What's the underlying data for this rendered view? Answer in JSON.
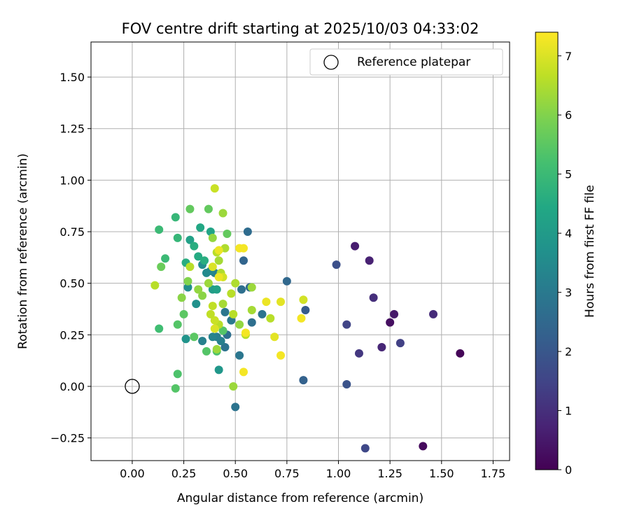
{
  "chart_data": {
    "type": "scatter",
    "title": "FOV centre drift starting at 2025/10/03 04:33:02",
    "xlabel": "Angular distance from reference (arcmin)",
    "ylabel": "Rotation from reference (arcmin)",
    "xlim": [
      -0.2,
      1.83
    ],
    "ylim": [
      -0.36,
      1.67
    ],
    "xticks": [
      0.0,
      0.25,
      0.5,
      0.75,
      1.0,
      1.25,
      1.5,
      1.75
    ],
    "xtick_labels": [
      "0.00",
      "0.25",
      "0.50",
      "0.75",
      "1.00",
      "1.25",
      "1.50",
      "1.75"
    ],
    "yticks": [
      -0.25,
      0.0,
      0.25,
      0.5,
      0.75,
      1.0,
      1.25,
      1.5
    ],
    "ytick_labels": [
      "−0.25",
      "0.00",
      "0.25",
      "0.50",
      "0.75",
      "1.00",
      "1.25",
      "1.50"
    ],
    "grid": true,
    "legend": {
      "position": "top-right",
      "entries": [
        "Reference platepar"
      ]
    },
    "reference_point": {
      "x": 0.0,
      "y": 0.0,
      "label": "Reference platepar"
    },
    "colorbar": {
      "label": "Hours from first FF file",
      "colormap": "viridis",
      "range": [
        0,
        7.4
      ],
      "ticks": [
        0,
        1,
        2,
        3,
        4,
        5,
        6,
        7
      ],
      "tick_labels": [
        "0",
        "1",
        "2",
        "3",
        "4",
        "5",
        "6",
        "7"
      ]
    },
    "points": [
      [
        1.59,
        0.16,
        0.1
      ],
      [
        1.41,
        -0.29,
        0.2
      ],
      [
        1.25,
        0.31,
        0.3
      ],
      [
        1.27,
        0.35,
        0.5
      ],
      [
        1.08,
        0.68,
        0.6
      ],
      [
        1.15,
        0.61,
        0.7
      ],
      [
        1.21,
        0.19,
        0.8
      ],
      [
        1.46,
        0.35,
        0.9
      ],
      [
        1.17,
        0.43,
        1.0
      ],
      [
        1.1,
        0.16,
        1.2
      ],
      [
        1.3,
        0.21,
        1.4
      ],
      [
        1.04,
        0.3,
        1.5
      ],
      [
        1.13,
        -0.3,
        1.6
      ],
      [
        0.99,
        0.59,
        1.8
      ],
      [
        1.04,
        0.01,
        1.9
      ],
      [
        0.84,
        0.37,
        2.1
      ],
      [
        0.83,
        0.03,
        2.3
      ],
      [
        0.75,
        0.51,
        2.5
      ],
      [
        0.54,
        0.61,
        2.4
      ],
      [
        0.56,
        0.75,
        2.6
      ],
      [
        0.57,
        0.48,
        2.6
      ],
      [
        0.53,
        0.47,
        2.7
      ],
      [
        0.58,
        0.31,
        2.7
      ],
      [
        0.63,
        0.35,
        2.8
      ],
      [
        0.5,
        -0.1,
        2.8
      ],
      [
        0.52,
        0.15,
        2.9
      ],
      [
        0.46,
        0.25,
        2.7
      ],
      [
        0.45,
        0.19,
        2.8
      ],
      [
        0.45,
        0.36,
        2.9
      ],
      [
        0.48,
        0.32,
        3.0
      ],
      [
        0.41,
        0.24,
        3.1
      ],
      [
        0.43,
        0.22,
        3.2
      ],
      [
        0.34,
        0.22,
        3.2
      ],
      [
        0.39,
        0.24,
        3.3
      ],
      [
        0.4,
        0.55,
        3.2
      ],
      [
        0.38,
        0.56,
        3.4
      ],
      [
        0.36,
        0.55,
        3.5
      ],
      [
        0.34,
        0.59,
        3.6
      ],
      [
        0.27,
        0.48,
        3.6
      ],
      [
        0.31,
        0.4,
        3.7
      ],
      [
        0.26,
        0.23,
        3.8
      ],
      [
        0.42,
        0.08,
        3.9
      ],
      [
        0.39,
        0.47,
        4.1
      ],
      [
        0.41,
        0.47,
        4.2
      ],
      [
        0.38,
        0.75,
        4.3
      ],
      [
        0.33,
        0.77,
        4.4
      ],
      [
        0.28,
        0.71,
        4.2
      ],
      [
        0.3,
        0.68,
        4.6
      ],
      [
        0.32,
        0.63,
        4.5
      ],
      [
        0.35,
        0.61,
        4.6
      ],
      [
        0.26,
        0.6,
        4.6
      ],
      [
        0.22,
        0.72,
        4.9
      ],
      [
        0.21,
        0.82,
        4.9
      ],
      [
        0.13,
        0.76,
        5.0
      ],
      [
        0.16,
        0.62,
        5.0
      ],
      [
        0.13,
        0.28,
        5.1
      ],
      [
        0.22,
        0.06,
        5.3
      ],
      [
        0.21,
        -0.01,
        5.4
      ],
      [
        0.25,
        0.35,
        5.5
      ],
      [
        0.22,
        0.3,
        5.4
      ],
      [
        0.3,
        0.24,
        5.5
      ],
      [
        0.36,
        0.17,
        5.4
      ],
      [
        0.41,
        0.17,
        5.3
      ],
      [
        0.44,
        0.27,
        5.4
      ],
      [
        0.46,
        0.74,
        5.6
      ],
      [
        0.37,
        0.86,
        5.6
      ],
      [
        0.28,
        0.86,
        5.6
      ],
      [
        0.14,
        0.58,
        5.7
      ],
      [
        0.27,
        0.51,
        6.0
      ],
      [
        0.24,
        0.43,
        6.1
      ],
      [
        0.34,
        0.44,
        6.1
      ],
      [
        0.32,
        0.47,
        6.2
      ],
      [
        0.37,
        0.5,
        6.3
      ],
      [
        0.42,
        0.61,
        6.4
      ],
      [
        0.39,
        0.72,
        6.2
      ],
      [
        0.44,
        0.84,
        6.3
      ],
      [
        0.45,
        0.67,
        6.5
      ],
      [
        0.43,
        0.55,
        6.5
      ],
      [
        0.44,
        0.4,
        6.4
      ],
      [
        0.5,
        0.5,
        6.5
      ],
      [
        0.49,
        0.35,
        6.6
      ],
      [
        0.55,
        0.25,
        6.6
      ],
      [
        0.58,
        0.37,
        6.4
      ],
      [
        0.52,
        0.3,
        6.2
      ],
      [
        0.42,
        0.3,
        6.6
      ],
      [
        0.4,
        0.32,
        6.8
      ],
      [
        0.38,
        0.35,
        6.7
      ],
      [
        0.41,
        0.18,
        6.3
      ],
      [
        0.49,
        -0.0,
        6.3
      ],
      [
        0.58,
        0.48,
        6.3
      ],
      [
        0.48,
        0.45,
        6.6
      ],
      [
        0.41,
        0.65,
        6.6
      ],
      [
        0.44,
        0.53,
        6.9
      ],
      [
        0.4,
        0.96,
        6.8
      ],
      [
        0.39,
        0.58,
        7.0
      ],
      [
        0.42,
        0.66,
        7.2
      ],
      [
        0.52,
        0.67,
        7.3
      ],
      [
        0.54,
        0.67,
        7.3
      ],
      [
        0.11,
        0.49,
        6.6
      ],
      [
        0.28,
        0.58,
        6.6
      ],
      [
        0.67,
        0.33,
        6.6
      ],
      [
        0.65,
        0.41,
        7.2
      ],
      [
        0.72,
        0.41,
        7.1
      ],
      [
        0.83,
        0.42,
        6.9
      ],
      [
        0.82,
        0.33,
        7.3
      ],
      [
        0.69,
        0.24,
        7.1
      ],
      [
        0.72,
        0.15,
        7.3
      ],
      [
        0.54,
        0.07,
        7.3
      ],
      [
        0.55,
        0.26,
        7.3
      ],
      [
        0.42,
        0.53,
        7.2
      ],
      [
        0.4,
        0.28,
        7.0
      ],
      [
        0.39,
        0.39,
        6.7
      ]
    ]
  }
}
